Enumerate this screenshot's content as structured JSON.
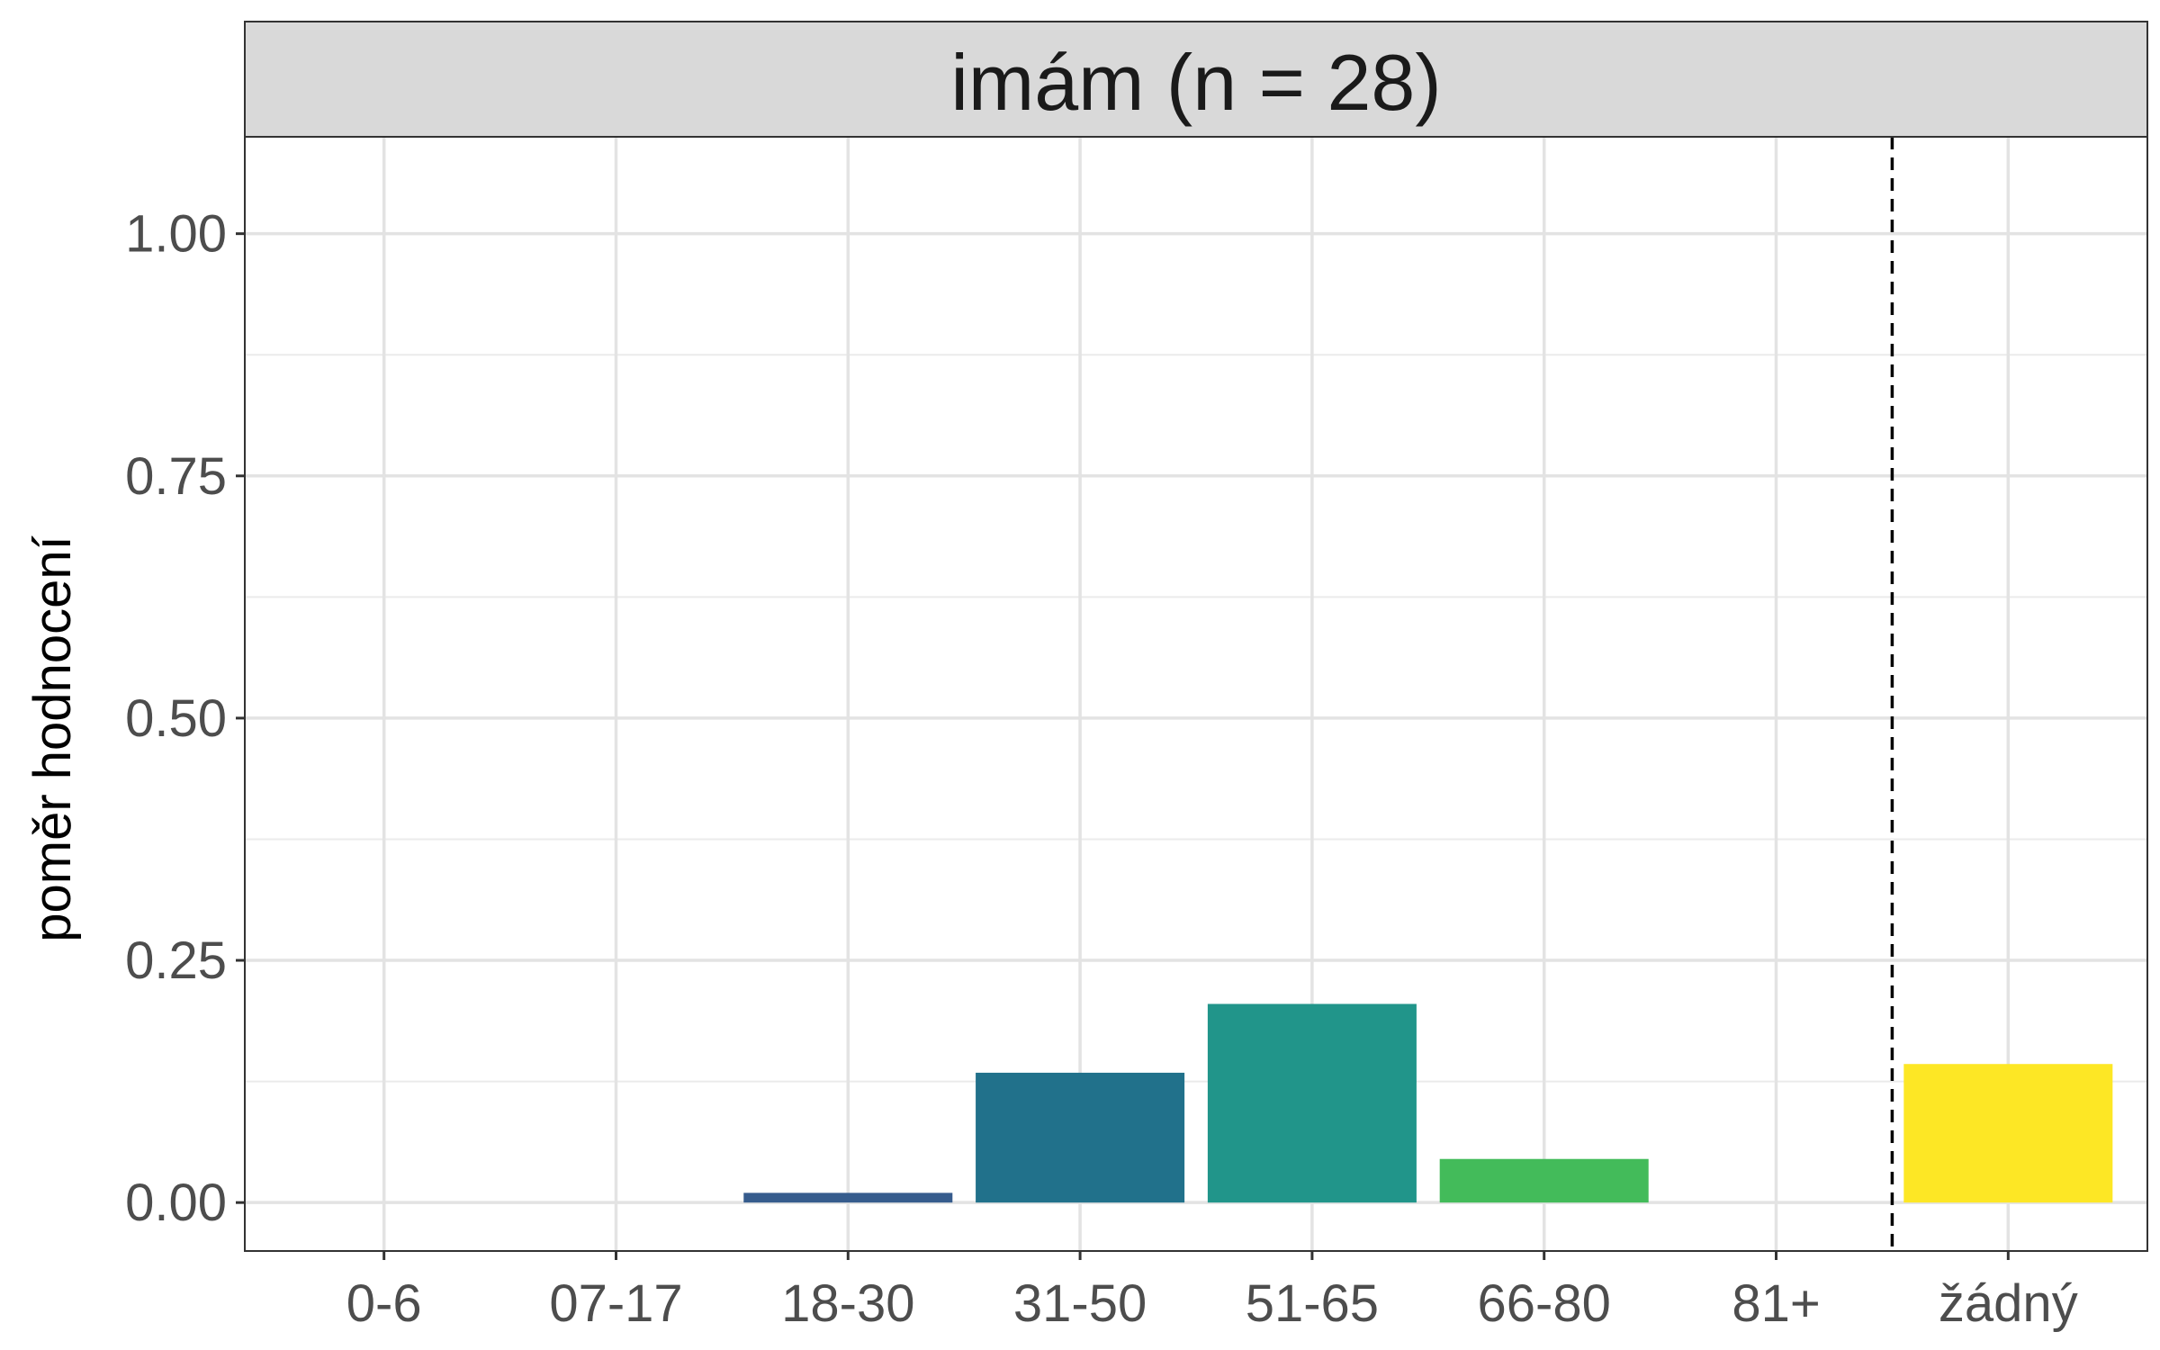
{
  "chart_data": {
    "type": "bar",
    "title": "imám (n = 28)",
    "xlabel": "",
    "ylabel": "poměr hodnocení",
    "categories": [
      "0-6",
      "07-17",
      "18-30",
      "31-50",
      "51-65",
      "66-80",
      "81+",
      "žádný"
    ],
    "values": [
      0,
      0,
      0.01,
      0.134,
      0.205,
      0.045,
      0,
      0.143
    ],
    "ylim": [
      -0.05,
      1.1
    ],
    "yticks": [
      0,
      0.25,
      0.5,
      0.75,
      1.0
    ],
    "ytick_labels": [
      "0.00",
      "0.25",
      "0.50",
      "0.75",
      "1.00"
    ],
    "yminor": [
      0.125,
      0.375,
      0.625,
      0.875
    ],
    "bar_colors": [
      "#440154",
      "#46327e",
      "#365c8d",
      "#21718b",
      "#21958a",
      "#43bb5a",
      "#8fd744",
      "#fde725"
    ],
    "reference_line": {
      "after_category": "81+",
      "style": "dashed"
    },
    "grid": true,
    "legend": "none"
  }
}
